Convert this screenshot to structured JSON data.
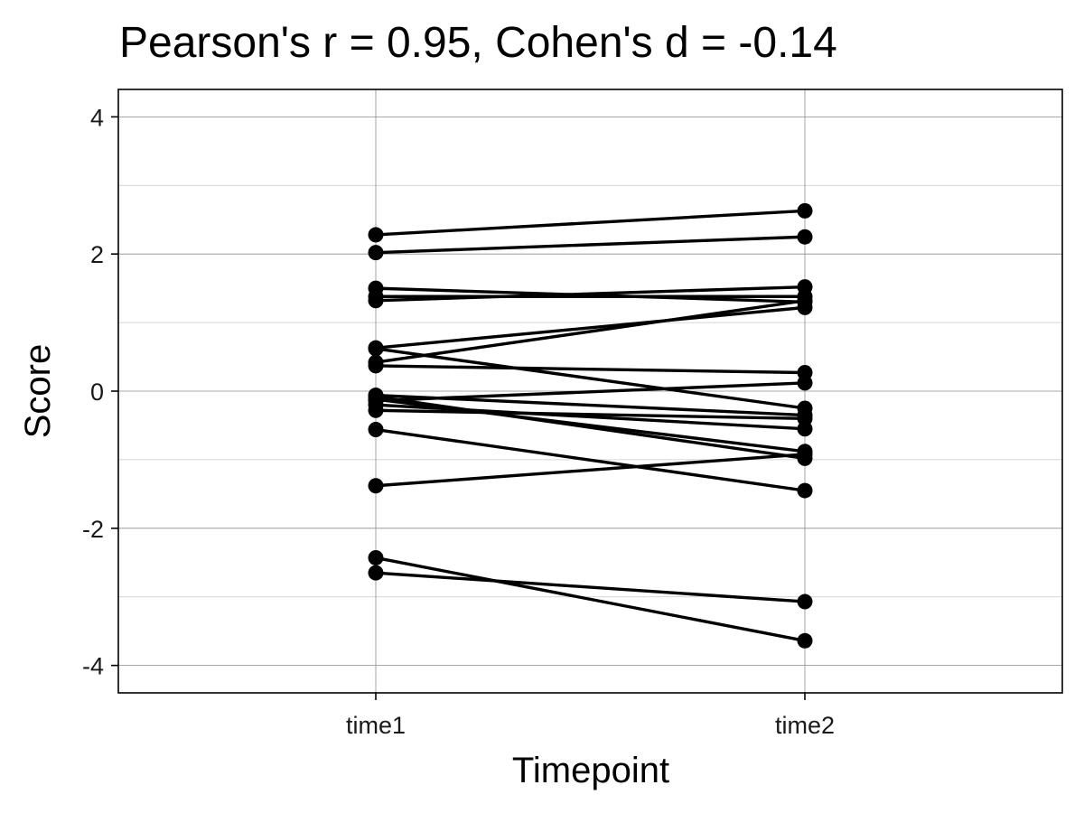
{
  "chart_data": {
    "type": "line",
    "title": "Pearson's r = 0.95, Cohen's d = -0.14",
    "xlabel": "Timepoint",
    "ylabel": "Score",
    "categories": [
      "time1",
      "time2"
    ],
    "ylim": [
      -4.4,
      4.4
    ],
    "yticks": [
      -4,
      -2,
      0,
      2,
      4
    ],
    "ytick_labels": [
      "-4",
      "-2",
      "0",
      "2",
      "4"
    ],
    "grid": true,
    "colors": {
      "line": "#000000",
      "point": "#000000",
      "grid_major": "#8c8c8c",
      "grid_minor": "#c8c8c8",
      "panel_border": "#000000"
    },
    "pairs": [
      [
        2.28,
        2.63
      ],
      [
        2.02,
        2.25
      ],
      [
        1.5,
        1.3
      ],
      [
        1.38,
        1.38
      ],
      [
        1.32,
        1.52
      ],
      [
        0.63,
        1.22
      ],
      [
        0.62,
        -0.25
      ],
      [
        0.42,
        1.32
      ],
      [
        0.37,
        0.27
      ],
      [
        -0.06,
        -0.35
      ],
      [
        -0.08,
        -0.98
      ],
      [
        -0.12,
        -0.88
      ],
      [
        -0.14,
        0.12
      ],
      [
        -0.2,
        -0.55
      ],
      [
        -0.28,
        -0.4
      ],
      [
        -0.56,
        -1.45
      ],
      [
        -1.38,
        -0.92
      ],
      [
        -2.43,
        -3.64
      ],
      [
        -2.65,
        -3.07
      ]
    ]
  }
}
